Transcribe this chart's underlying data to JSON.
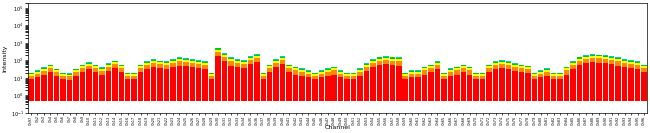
{
  "title": "",
  "xlabel": "Channel",
  "ylabel": "Intensity",
  "background": "#ffffff",
  "bar_width": 0.85,
  "channels": [
    "Ch97",
    "Ch2",
    "Ch3",
    "Ch4",
    "Ch5",
    "Ch6",
    "Ch7",
    "Ch8",
    "Ch9",
    "Ch10",
    "Ch11",
    "Ch12",
    "Ch13",
    "Ch14",
    "Ch15",
    "Ch16",
    "Ch17",
    "Ch18",
    "Ch19",
    "Ch20",
    "Ch21",
    "Ch22",
    "Ch23",
    "Ch24",
    "Ch25",
    "Ch26",
    "Ch27",
    "Ch28",
    "Ch29",
    "Ch30",
    "Ch31",
    "Ch32",
    "Ch33",
    "Ch34",
    "Ch35",
    "Ch36",
    "Ch37",
    "Ch38",
    "Ch39",
    "Ch40",
    "Ch41",
    "Ch42",
    "Ch43",
    "Ch44",
    "Ch45",
    "Ch46",
    "Ch47",
    "Ch48",
    "Ch49",
    "Ch50",
    "Ch51",
    "Ch52",
    "Ch53",
    "Ch54",
    "Ch55",
    "Ch56",
    "Ch57",
    "Ch58",
    "Ch59",
    "Ch60",
    "Ch61",
    "Ch62",
    "Ch63",
    "Ch64",
    "Ch65",
    "Ch66",
    "Ch67",
    "Ch68",
    "Ch69",
    "Ch70",
    "Ch71",
    "Ch72",
    "Ch73",
    "Ch74",
    "Ch75",
    "Ch76",
    "Ch77",
    "Ch78",
    "Ch79",
    "Ch80",
    "Ch81",
    "Ch82",
    "Ch83",
    "Ch84",
    "Ch85",
    "Ch86",
    "Ch87",
    "Ch88",
    "Ch89",
    "Ch90",
    "Ch91",
    "Ch92",
    "Ch93",
    "Ch94",
    "Ch95",
    "Ch96"
  ],
  "band_keys": [
    "red",
    "orange",
    "yellow",
    "green",
    "cyan"
  ],
  "band_colors": [
    "#ff0000",
    "#ff8800",
    "#ffff00",
    "#00cc00",
    "#00cccc"
  ],
  "band_data": {
    "red": [
      8,
      10,
      15,
      20,
      12,
      8,
      7,
      12,
      20,
      30,
      20,
      15,
      25,
      35,
      20,
      8,
      8,
      20,
      30,
      40,
      35,
      30,
      40,
      50,
      45,
      40,
      35,
      30,
      8,
      180,
      90,
      50,
      40,
      35,
      60,
      80,
      8,
      20,
      40,
      60,
      20,
      15,
      12,
      10,
      8,
      10,
      12,
      15,
      10,
      8,
      8,
      12,
      25,
      40,
      55,
      60,
      55,
      50,
      8,
      10,
      10,
      15,
      20,
      30,
      8,
      12,
      15,
      20,
      15,
      8,
      8,
      20,
      30,
      35,
      30,
      25,
      20,
      18,
      8,
      10,
      12,
      8,
      8,
      15,
      30,
      55,
      70,
      80,
      75,
      70,
      60,
      50,
      40,
      35,
      30,
      20
    ],
    "orange": [
      5,
      7,
      10,
      15,
      8,
      5,
      5,
      8,
      15,
      20,
      15,
      10,
      18,
      25,
      15,
      5,
      5,
      15,
      22,
      30,
      25,
      22,
      30,
      38,
      34,
      30,
      26,
      22,
      5,
      140,
      70,
      38,
      30,
      26,
      45,
      60,
      5,
      15,
      30,
      45,
      15,
      11,
      9,
      7,
      5,
      7,
      9,
      11,
      7,
      5,
      5,
      9,
      18,
      30,
      42,
      45,
      42,
      38,
      5,
      7,
      7,
      11,
      15,
      22,
      5,
      9,
      11,
      15,
      11,
      5,
      5,
      15,
      22,
      26,
      22,
      18,
      15,
      13,
      5,
      7,
      9,
      5,
      5,
      11,
      22,
      42,
      52,
      60,
      56,
      52,
      45,
      38,
      30,
      26,
      22,
      15
    ],
    "yellow": [
      3,
      5,
      7,
      10,
      6,
      3,
      3,
      6,
      10,
      14,
      10,
      7,
      12,
      18,
      10,
      3,
      3,
      10,
      16,
      22,
      18,
      16,
      22,
      28,
      25,
      22,
      19,
      16,
      3,
      100,
      50,
      28,
      22,
      19,
      32,
      44,
      3,
      10,
      22,
      32,
      10,
      8,
      6,
      5,
      3,
      5,
      6,
      8,
      5,
      3,
      3,
      6,
      13,
      22,
      30,
      32,
      30,
      28,
      3,
      5,
      5,
      8,
      10,
      16,
      3,
      6,
      8,
      10,
      8,
      3,
      3,
      10,
      16,
      19,
      16,
      13,
      10,
      9,
      3,
      5,
      6,
      3,
      3,
      8,
      16,
      30,
      38,
      44,
      40,
      38,
      32,
      28,
      22,
      19,
      16,
      10
    ],
    "green": [
      2,
      3,
      5,
      7,
      4,
      2,
      2,
      4,
      7,
      9,
      7,
      5,
      8,
      12,
      7,
      2,
      2,
      7,
      11,
      15,
      12,
      11,
      15,
      19,
      17,
      15,
      13,
      11,
      2,
      70,
      35,
      19,
      15,
      13,
      22,
      30,
      2,
      7,
      15,
      22,
      7,
      5,
      4,
      3,
      2,
      3,
      4,
      5,
      3,
      2,
      2,
      4,
      9,
      15,
      20,
      22,
      20,
      19,
      2,
      3,
      3,
      5,
      7,
      11,
      2,
      4,
      5,
      7,
      5,
      2,
      2,
      7,
      11,
      13,
      11,
      9,
      7,
      6,
      2,
      3,
      4,
      2,
      2,
      5,
      11,
      20,
      26,
      30,
      27,
      26,
      22,
      19,
      15,
      13,
      11,
      7
    ],
    "cyan": [
      1,
      2,
      3,
      4,
      3,
      1,
      1,
      3,
      5,
      6,
      4,
      3,
      5,
      8,
      5,
      1,
      1,
      5,
      8,
      10,
      8,
      8,
      10,
      13,
      12,
      10,
      9,
      8,
      1,
      50,
      25,
      13,
      10,
      9,
      15,
      20,
      1,
      5,
      10,
      15,
      5,
      4,
      3,
      2,
      1,
      2,
      3,
      4,
      2,
      1,
      1,
      3,
      6,
      10,
      14,
      15,
      14,
      13,
      1,
      2,
      2,
      4,
      5,
      8,
      1,
      3,
      4,
      5,
      4,
      1,
      1,
      5,
      8,
      9,
      8,
      6,
      5,
      4,
      1,
      2,
      3,
      1,
      1,
      4,
      8,
      14,
      18,
      20,
      18,
      18,
      15,
      13,
      10,
      9,
      8,
      5
    ]
  }
}
